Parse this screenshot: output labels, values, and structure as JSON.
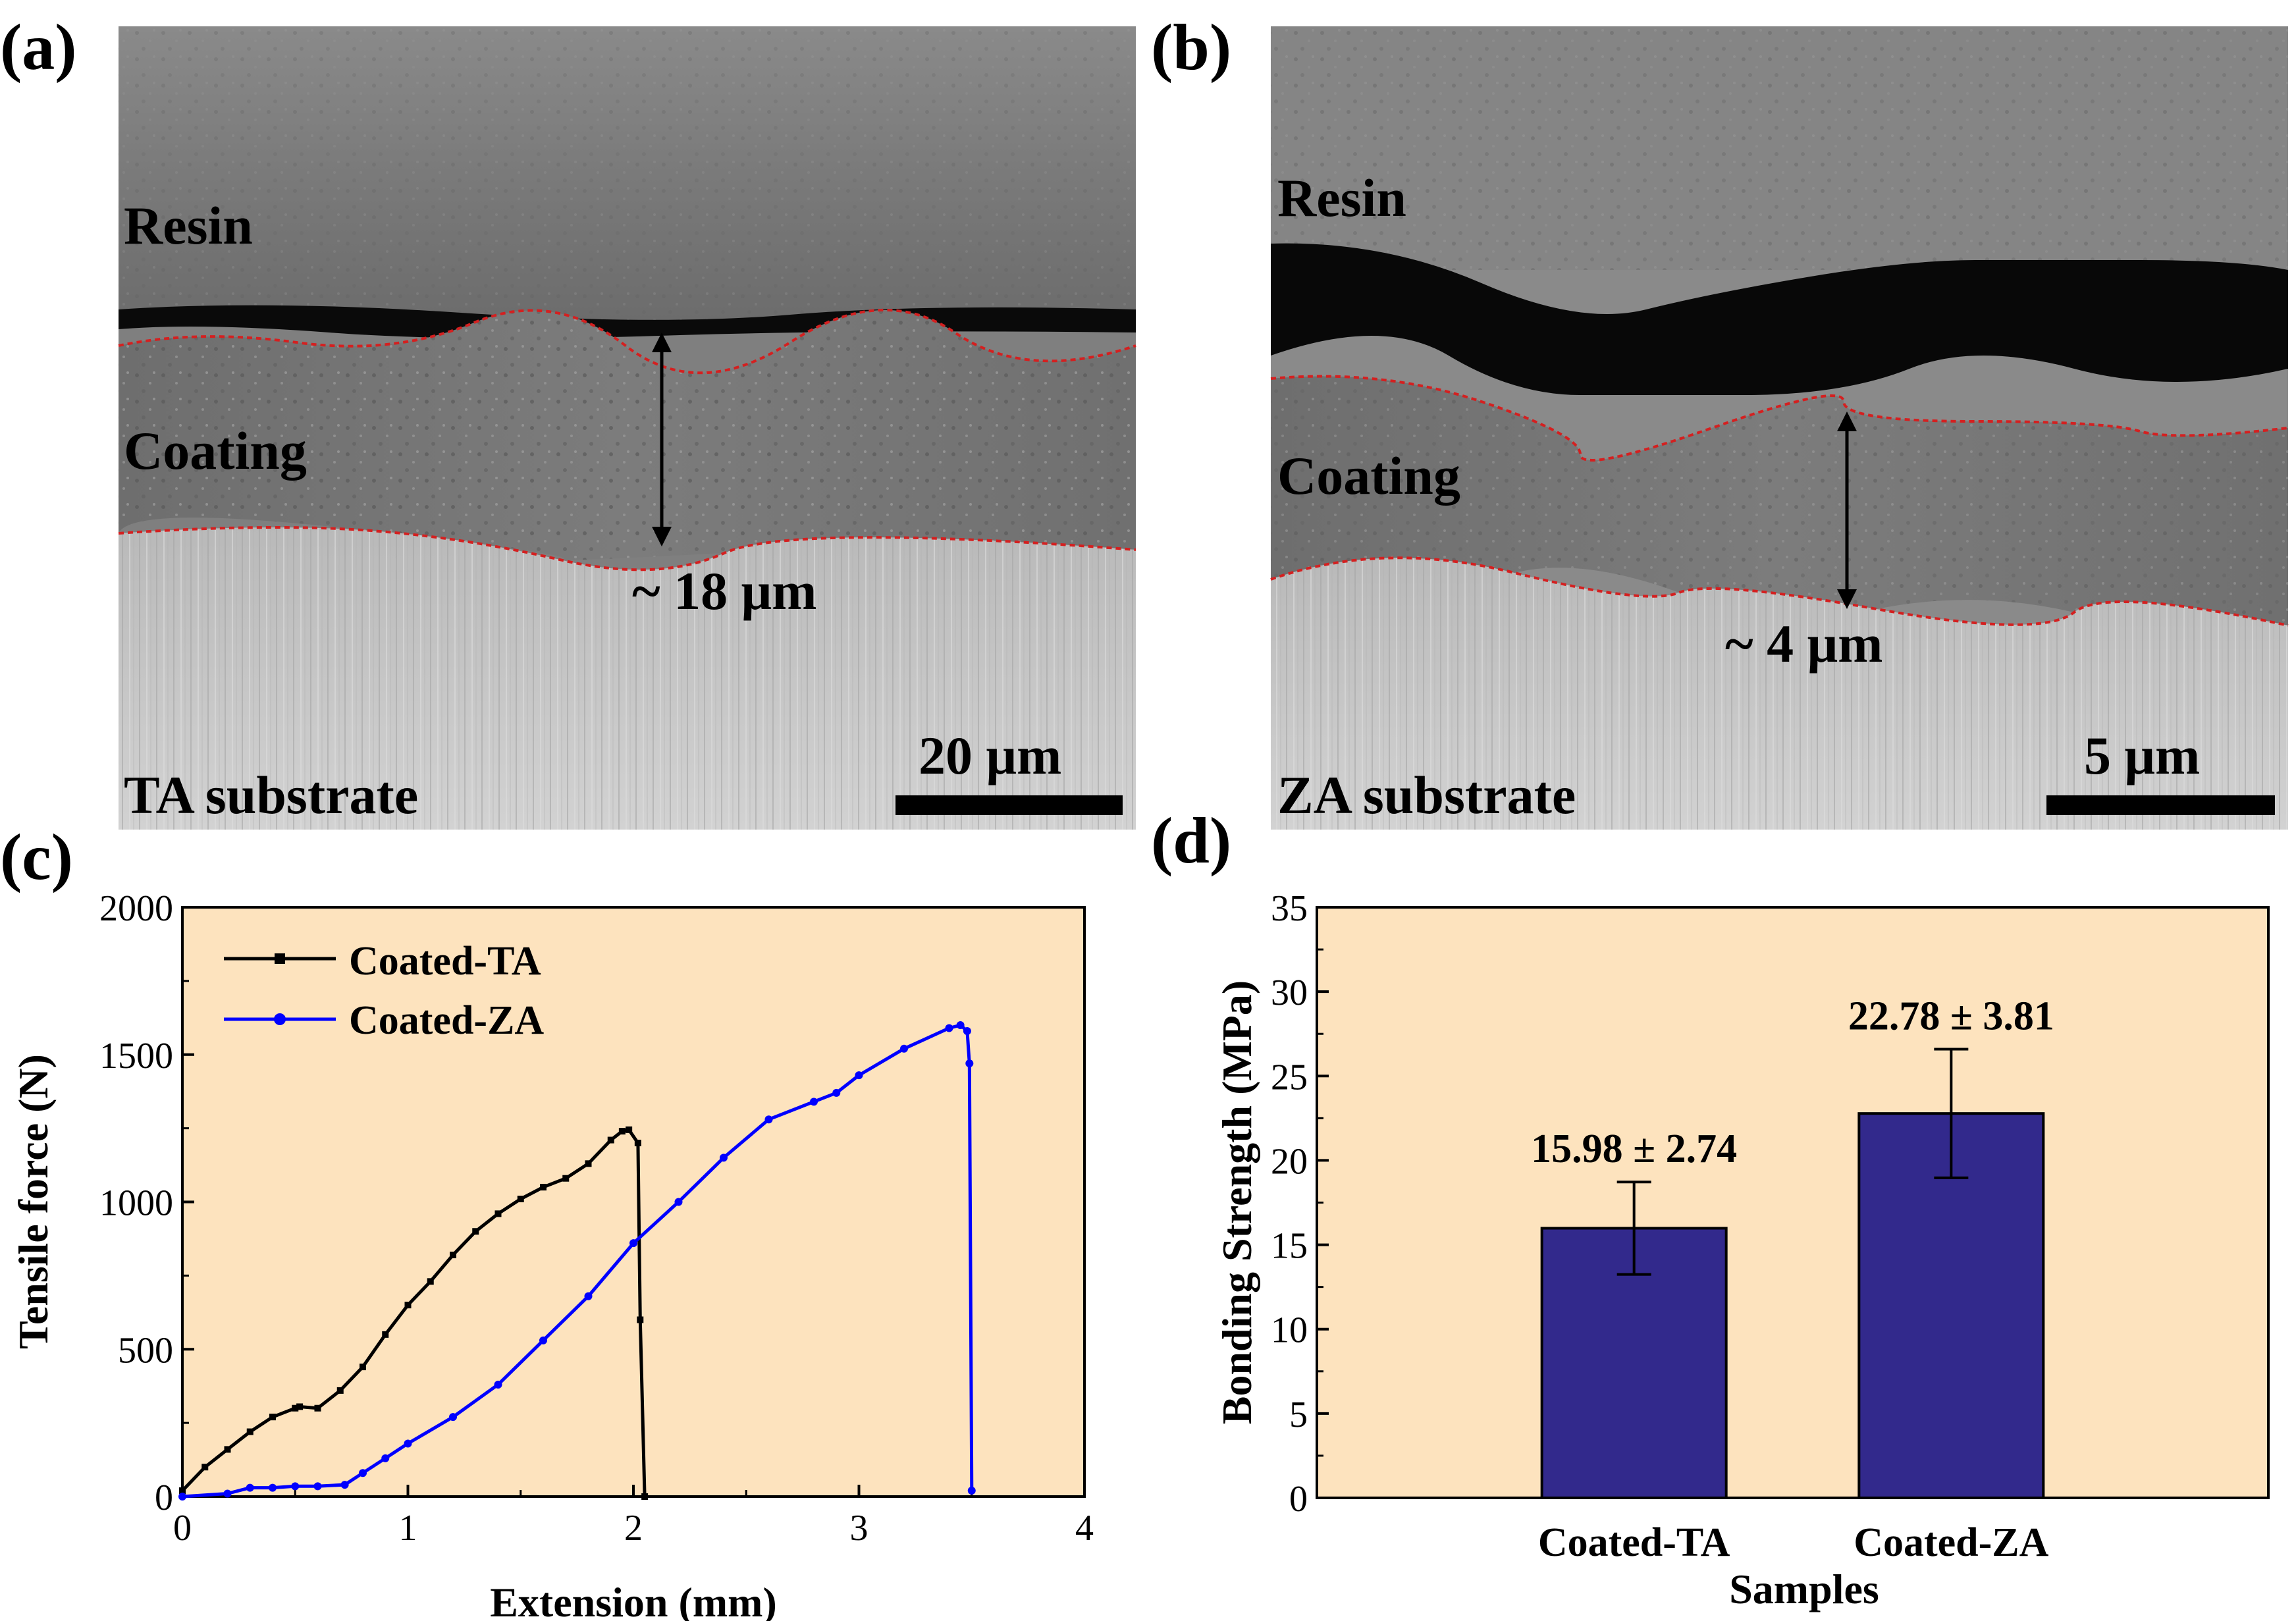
{
  "panels": {
    "a": {
      "label": "(a)",
      "layers": {
        "resin": "Resin",
        "coating": "Coating",
        "substrate": "TA substrate"
      },
      "thickness": "~ 18 μm",
      "scale_bar": "20 μm"
    },
    "b": {
      "label": "(b)",
      "layers": {
        "resin": "Resin",
        "coating": "Coating",
        "substrate": "ZA substrate"
      },
      "thickness": "~ 4 μm",
      "scale_bar": "5 μm"
    },
    "c": {
      "label": "(c)"
    },
    "d": {
      "label": "(d)"
    }
  },
  "colors": {
    "plot_bg": "#FDE3BE",
    "ta_line": "#000000",
    "za_line": "#0000FF",
    "bar_fill": "#32298C",
    "interface_dash": "#D42020"
  },
  "chart_data": [
    {
      "id": "c",
      "type": "line",
      "xlabel": "Extension (mm)",
      "ylabel": "Tensile force (N)",
      "xlim": [
        0,
        4
      ],
      "ylim": [
        0,
        2000
      ],
      "xticks": [
        0,
        1,
        2,
        3,
        4
      ],
      "yticks": [
        0,
        500,
        1000,
        1500,
        2000
      ],
      "legend_position": "top-left",
      "series": [
        {
          "name": "Coated-TA",
          "marker": "square",
          "x": [
            0,
            0.1,
            0.2,
            0.3,
            0.4,
            0.5,
            0.52,
            0.6,
            0.7,
            0.8,
            0.9,
            1.0,
            1.1,
            1.2,
            1.3,
            1.4,
            1.5,
            1.6,
            1.7,
            1.8,
            1.9,
            1.95,
            1.98,
            2.02,
            2.03,
            2.05
          ],
          "y": [
            20,
            100,
            160,
            220,
            270,
            300,
            305,
            300,
            360,
            440,
            550,
            650,
            730,
            820,
            900,
            960,
            1010,
            1050,
            1080,
            1130,
            1210,
            1240,
            1245,
            1200,
            600,
            0
          ]
        },
        {
          "name": "Coated-ZA",
          "marker": "circle",
          "x": [
            0,
            0.2,
            0.3,
            0.4,
            0.5,
            0.6,
            0.72,
            0.8,
            0.9,
            1.0,
            1.2,
            1.4,
            1.6,
            1.8,
            2.0,
            2.2,
            2.4,
            2.6,
            2.8,
            2.9,
            3.0,
            3.2,
            3.4,
            3.45,
            3.48,
            3.49,
            3.5
          ],
          "y": [
            0,
            10,
            30,
            30,
            35,
            35,
            40,
            80,
            130,
            180,
            270,
            380,
            530,
            680,
            860,
            1000,
            1150,
            1280,
            1340,
            1370,
            1430,
            1520,
            1590,
            1600,
            1580,
            1470,
            20
          ]
        }
      ]
    },
    {
      "id": "d",
      "type": "bar",
      "xlabel": "Samples",
      "ylabel": "Bonding Strength (MPa)",
      "ylim": [
        0,
        35
      ],
      "yticks": [
        0,
        5,
        10,
        15,
        20,
        25,
        30,
        35
      ],
      "categories": [
        "Coated-TA",
        "Coated-ZA"
      ],
      "values": [
        15.98,
        22.78
      ],
      "errors": [
        2.74,
        3.81
      ],
      "labels": [
        "15.98 ± 2.74",
        "22.78 ± 3.81"
      ]
    }
  ]
}
